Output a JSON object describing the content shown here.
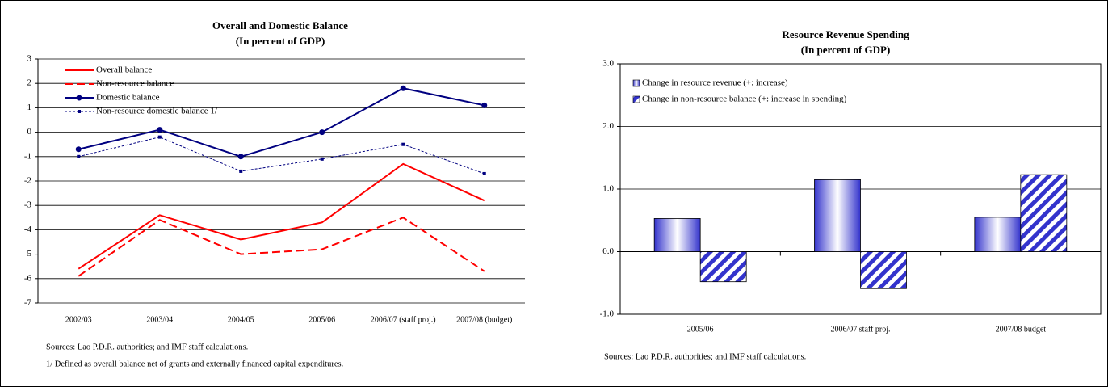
{
  "chart_data": [
    {
      "type": "line",
      "title": "Overall and Domestic Balance",
      "subtitle": "(In percent of GDP)",
      "categories": [
        "2002/03",
        "2003/04",
        "2004/05",
        "2005/06",
        "2006/07 (staff proj.)",
        "2007/08 (budget)"
      ],
      "series": [
        {
          "name": "Overall balance",
          "color": "#ff0000",
          "dash": "solid",
          "marker": "none",
          "values": [
            -5.6,
            -3.4,
            -4.4,
            -3.7,
            -1.3,
            -2.8
          ]
        },
        {
          "name": "Non-resource balance",
          "color": "#ff0000",
          "dash": "dashed",
          "marker": "none",
          "values": [
            -5.9,
            -3.6,
            -5.0,
            -4.8,
            -3.5,
            -5.7
          ]
        },
        {
          "name": "Domestic balance",
          "color": "#000080",
          "dash": "solid",
          "marker": "circle",
          "values": [
            -0.7,
            0.1,
            -1.0,
            0.0,
            1.8,
            1.1
          ]
        },
        {
          "name": "Non-resource domestic balance 1/",
          "color": "#000080",
          "dash": "dotted",
          "marker": "square",
          "values": [
            -1.0,
            -0.2,
            -1.6,
            -1.1,
            -0.5,
            -1.7
          ]
        }
      ],
      "ylim": [
        -7,
        3
      ],
      "yticks": [
        -7,
        -6,
        -5,
        -4,
        -3,
        -2,
        -1,
        0,
        1,
        2,
        3
      ],
      "grid": true,
      "legend": "upper left",
      "notes": [
        "Sources: Lao P.D.R. authorities; and IMF staff calculations.",
        "1/ Defined as overall balance net of grants and externally financed capital expenditures."
      ]
    },
    {
      "type": "bar",
      "title": "Resource Revenue Spending",
      "subtitle": "(In percent of GDP)",
      "categories": [
        "2005/06",
        "2006/07 staff proj.",
        "2007/08 budget"
      ],
      "series": [
        {
          "name": "Change in resource revenue (+: increase)",
          "color": "#3333cc",
          "fill": "gradient",
          "values": [
            0.53,
            1.15,
            0.55
          ]
        },
        {
          "name": "Change in non-resource balance (+: increase in spending)",
          "color": "#3333cc",
          "fill": "hatch",
          "values": [
            -0.48,
            -0.59,
            1.23
          ]
        }
      ],
      "ylim": [
        -1,
        3
      ],
      "yticks": [
        {
          "value": -1,
          "label": "-1.0"
        },
        {
          "value": 0,
          "label": "0.0"
        },
        {
          "value": 1,
          "label": "1.0"
        },
        {
          "value": 2,
          "label": "2.0"
        },
        {
          "value": 3,
          "label": "3.0"
        }
      ],
      "grid": true,
      "legend": "upper left",
      "notes": [
        "Sources: Lao P.D.R. authorities; and IMF staff calculations."
      ]
    }
  ]
}
